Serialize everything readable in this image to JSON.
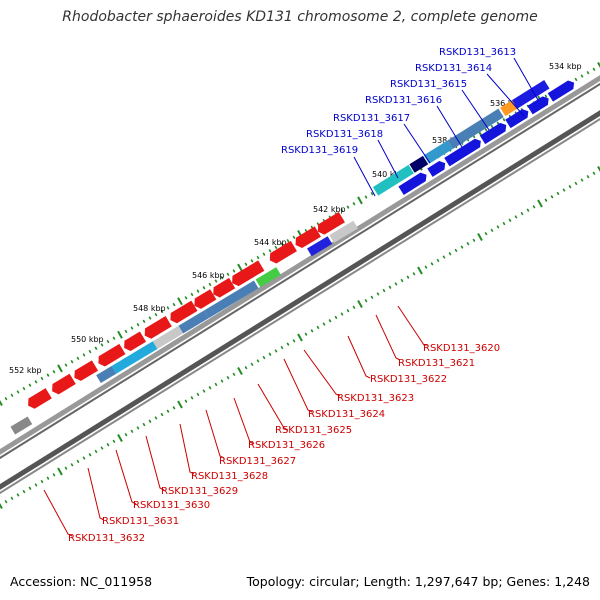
{
  "title": "Rhodobacter sphaeroides KD131 chromosome 2, complete genome",
  "footer": {
    "accession": "Accession: NC_011958",
    "stats": "Topology: circular; Length: 1,297,647 bp; Genes: 1,248"
  },
  "colors": {
    "forward_label": "#0000cc",
    "reverse_label": "#cc0000",
    "tick": "#228b22",
    "backbone": "#808080"
  },
  "tick_labels": [
    "534 kbp",
    "536 kbp",
    "538 kbp",
    "540 kbp",
    "542 kbp",
    "544 kbp",
    "546 kbp",
    "548 kbp",
    "550 kbp",
    "552 kbp"
  ],
  "forward_labels": [
    "RSKD131_3613",
    "RSKD131_3614",
    "RSKD131_3615",
    "RSKD131_3616",
    "RSKD131_3617",
    "RSKD131_3618",
    "RSKD131_3619"
  ],
  "reverse_labels": [
    "RSKD131_3620",
    "RSKD131_3621",
    "RSKD131_3622",
    "RSKD131_3623",
    "RSKD131_3624",
    "RSKD131_3625",
    "RSKD131_3626",
    "RSKD131_3627",
    "RSKD131_3628",
    "RSKD131_3629",
    "RSKD131_3630",
    "RSKD131_3631",
    "RSKD131_3632"
  ]
}
